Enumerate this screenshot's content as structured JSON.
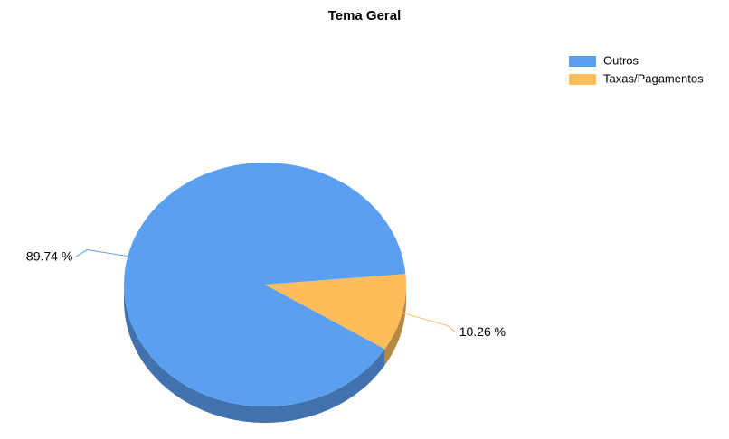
{
  "chart_data": {
    "type": "pie",
    "title": "Tema Geral",
    "categories": [
      "Outros",
      "Taxas/Pagamentos"
    ],
    "values": [
      89.74,
      10.26
    ],
    "value_labels": [
      "89.74 %",
      "10.26 %"
    ],
    "colors": [
      "#5b9ff0",
      "#fdbd5b"
    ],
    "legend": "top-right"
  }
}
